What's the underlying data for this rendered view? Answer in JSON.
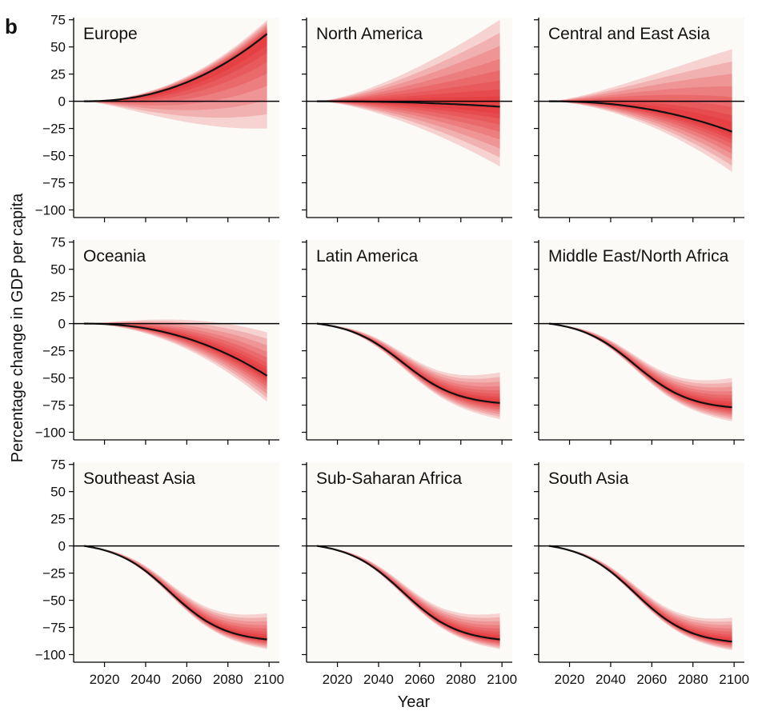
{
  "figure": {
    "panel_letter": "b",
    "ylabel": "Percentage change in GDP per capita",
    "xlabel": "Year"
  },
  "chart_data": {
    "type": "line",
    "xlabel": "Year",
    "ylabel": "Percentage change in GDP per capita",
    "xlim": [
      2005,
      2105
    ],
    "ylim": [
      -107,
      77
    ],
    "xticks": [
      2020,
      2040,
      2060,
      2080,
      2100
    ],
    "yticks": [
      75,
      50,
      25,
      0,
      -25,
      -50,
      -75,
      -100
    ],
    "grid": false,
    "colors": {
      "band": "#e3070f",
      "median": "#111111",
      "zero_line": "#000000",
      "panel_bg": "#fbfaf7"
    },
    "panels": [
      {
        "title": "Europe",
        "x_start": 2010,
        "x_end": 2099,
        "median_end": 62,
        "band_low_end": -25,
        "band_high_end": 75,
        "median_shape": "power",
        "clip_top": true
      },
      {
        "title": "North America",
        "x_start": 2010,
        "x_end": 2099,
        "median_end": -5,
        "band_low_end": -60,
        "band_high_end": 75,
        "median_shape": "power",
        "clip_top": true
      },
      {
        "title": "Central and East Asia",
        "x_start": 2010,
        "x_end": 2099,
        "median_end": -28,
        "band_low_end": -65,
        "band_high_end": 48,
        "median_shape": "power",
        "clip_top": false
      },
      {
        "title": "Oceania",
        "x_start": 2010,
        "x_end": 2099,
        "median_end": -48,
        "band_low_end": -72,
        "band_high_end": -8,
        "median_shape": "power",
        "clip_top": false
      },
      {
        "title": "Latin America",
        "x_start": 2010,
        "x_end": 2099,
        "median_end": -73,
        "band_low_end": -88,
        "band_high_end": -45,
        "median_shape": "sigmoid",
        "clip_top": false
      },
      {
        "title": "Middle East/North Africa",
        "x_start": 2010,
        "x_end": 2099,
        "median_end": -77,
        "band_low_end": -90,
        "band_high_end": -50,
        "median_shape": "sigmoid",
        "clip_top": false
      },
      {
        "title": "Southeast Asia",
        "x_start": 2010,
        "x_end": 2099,
        "median_end": -86,
        "band_low_end": -95,
        "band_high_end": -62,
        "median_shape": "sigmoid",
        "clip_top": false
      },
      {
        "title": "Sub-Saharan Africa",
        "x_start": 2010,
        "x_end": 2099,
        "median_end": -86,
        "band_low_end": -95,
        "band_high_end": -62,
        "median_shape": "sigmoid",
        "clip_top": false
      },
      {
        "title": "South Asia",
        "x_start": 2010,
        "x_end": 2099,
        "median_end": -88,
        "band_low_end": -96,
        "band_high_end": -66,
        "median_shape": "sigmoid",
        "clip_top": false
      }
    ]
  }
}
